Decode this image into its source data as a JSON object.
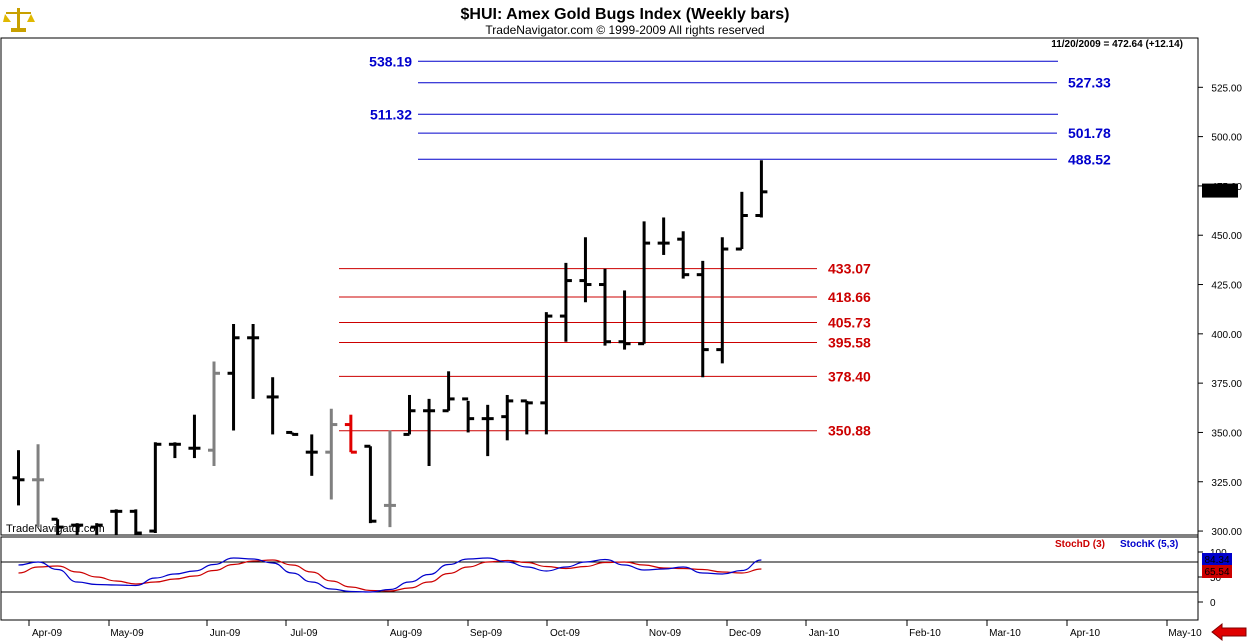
{
  "header": {
    "title": "$HUI:  Amex Gold Bugs Index  (Weekly bars)",
    "subtitle": "TradeNavigator.com © 1999-2009 All rights reserved",
    "last_info": "11/20/2009 = 472.64 (+12.14)",
    "watermark": "TradeNavigator.com"
  },
  "icons": {
    "logo": "gold-scales-icon",
    "scroll_left": "red-left-arrow-icon"
  },
  "colors": {
    "up_bars": "#000000",
    "down_bars": "#808080",
    "highlight_bar": "#e00000",
    "blue_levels": "#0000cc",
    "red_levels": "#cc0000",
    "stoch_d": "#cc0000",
    "stoch_k": "#0000cc"
  },
  "chart_data": {
    "type": "ohlc",
    "x_tick_labels": [
      "Apr-09",
      "May-09",
      "Jun-09",
      "Jul-09",
      "Aug-09",
      "Sep-09",
      "Oct-09",
      "Nov-09",
      "Dec-09",
      "Jan-10",
      "Feb-10",
      "Mar-10",
      "Apr-10",
      "May-10"
    ],
    "y_tick_labels": [
      "300.00",
      "325.00",
      "350.00",
      "375.00",
      "400.00",
      "425.00",
      "450.00",
      "475.00",
      "500.00",
      "525.00"
    ],
    "ylim": [
      298,
      550
    ],
    "last_price_label": "472.64",
    "bars": [
      {
        "o": 327,
        "h": 341,
        "l": 313,
        "c": 326,
        "color": "black"
      },
      {
        "o": 326,
        "h": 344,
        "l": 302,
        "c": 326,
        "color": "gray"
      },
      {
        "o": 306,
        "h": 306,
        "l": 298,
        "c": 302,
        "color": "black"
      },
      {
        "o": 303,
        "h": 304,
        "l": 298,
        "c": 303,
        "color": "black"
      },
      {
        "o": 302,
        "h": 304,
        "l": 298,
        "c": 303,
        "color": "black"
      },
      {
        "o": 310,
        "h": 311,
        "l": 298,
        "c": 310,
        "color": "black"
      },
      {
        "o": 310,
        "h": 311,
        "l": 298,
        "c": 299,
        "color": "black"
      },
      {
        "o": 300,
        "h": 345,
        "l": 299,
        "c": 344,
        "color": "black"
      },
      {
        "o": 344,
        "h": 345,
        "l": 337,
        "c": 344,
        "color": "black"
      },
      {
        "o": 342,
        "h": 359,
        "l": 337,
        "c": 342,
        "color": "black"
      },
      {
        "o": 341,
        "h": 386,
        "l": 333,
        "c": 380,
        "color": "gray"
      },
      {
        "o": 380,
        "h": 405,
        "l": 351,
        "c": 398,
        "color": "black"
      },
      {
        "o": 398,
        "h": 405,
        "l": 367,
        "c": 398,
        "color": "black"
      },
      {
        "o": 368,
        "h": 378,
        "l": 349,
        "c": 368,
        "color": "black"
      },
      {
        "o": 350,
        "h": 350,
        "l": 349,
        "c": 349,
        "color": "black"
      },
      {
        "o": 340,
        "h": 349,
        "l": 328,
        "c": 340,
        "color": "black"
      },
      {
        "o": 340,
        "h": 362,
        "l": 316,
        "c": 354,
        "color": "gray"
      },
      {
        "o": 354,
        "h": 359,
        "l": 340,
        "c": 340,
        "color": "red"
      },
      {
        "o": 343,
        "h": 343,
        "l": 304,
        "c": 305,
        "color": "black"
      },
      {
        "o": 313,
        "h": 351,
        "l": 302,
        "c": 313,
        "color": "gray"
      },
      {
        "o": 349,
        "h": 369,
        "l": 349,
        "c": 361,
        "color": "black"
      },
      {
        "o": 361,
        "h": 367,
        "l": 333,
        "c": 361,
        "color": "black"
      },
      {
        "o": 361,
        "h": 381,
        "l": 361,
        "c": 367,
        "color": "black"
      },
      {
        "o": 367,
        "h": 366,
        "l": 350,
        "c": 357,
        "color": "black"
      },
      {
        "o": 357,
        "h": 364,
        "l": 338,
        "c": 357,
        "color": "black"
      },
      {
        "o": 358,
        "h": 369,
        "l": 346,
        "c": 366,
        "color": "black"
      },
      {
        "o": 366,
        "h": 366,
        "l": 349,
        "c": 365,
        "color": "black"
      },
      {
        "o": 365,
        "h": 411,
        "l": 349,
        "c": 409,
        "color": "black"
      },
      {
        "o": 409,
        "h": 436,
        "l": 396,
        "c": 427,
        "color": "black"
      },
      {
        "o": 427,
        "h": 449,
        "l": 416,
        "c": 425,
        "color": "black"
      },
      {
        "o": 425,
        "h": 433,
        "l": 394,
        "c": 396,
        "color": "black"
      },
      {
        "o": 396,
        "h": 422,
        "l": 392,
        "c": 395,
        "color": "black"
      },
      {
        "o": 395,
        "h": 457,
        "l": 395,
        "c": 446,
        "color": "black"
      },
      {
        "o": 446,
        "h": 459,
        "l": 440,
        "c": 446,
        "color": "black"
      },
      {
        "o": 448,
        "h": 452,
        "l": 428,
        "c": 430,
        "color": "black"
      },
      {
        "o": 430,
        "h": 437,
        "l": 378,
        "c": 392,
        "color": "black"
      },
      {
        "o": 392,
        "h": 449,
        "l": 385,
        "c": 443,
        "color": "black"
      },
      {
        "o": 443,
        "h": 472,
        "l": 443,
        "c": 460,
        "color": "black"
      },
      {
        "o": 460,
        "h": 488,
        "l": 459,
        "c": 472,
        "color": "black"
      }
    ],
    "levels": [
      {
        "value": 538.19,
        "label": "538.19",
        "color": "blue",
        "label_side": "left"
      },
      {
        "value": 527.33,
        "label": "527.33",
        "color": "blue",
        "label_side": "right"
      },
      {
        "value": 511.32,
        "label": "511.32",
        "color": "blue",
        "label_side": "left"
      },
      {
        "value": 501.78,
        "label": "501.78",
        "color": "blue",
        "label_side": "right"
      },
      {
        "value": 488.52,
        "label": "488.52",
        "color": "blue",
        "label_side": "right"
      },
      {
        "value": 433.07,
        "label": "433.07",
        "color": "red",
        "label_side": "right"
      },
      {
        "value": 418.66,
        "label": "418.66",
        "color": "red",
        "label_side": "right"
      },
      {
        "value": 405.73,
        "label": "405.73",
        "color": "red",
        "label_side": "right"
      },
      {
        "value": 395.58,
        "label": "395.58",
        "color": "red",
        "label_side": "right"
      },
      {
        "value": 378.4,
        "label": "378.40",
        "color": "red",
        "label_side": "right"
      },
      {
        "value": 350.88,
        "label": "350.88",
        "color": "red",
        "label_side": "right"
      }
    ],
    "stochastic": {
      "ylim": [
        0,
        100
      ],
      "y_tick_labels": [
        "100",
        "50",
        "0"
      ],
      "legend": [
        {
          "name": "StochD (3)",
          "color": "red"
        },
        {
          "name": "StochK (5,3)",
          "color": "blue"
        }
      ],
      "last_d_label": "65.54",
      "last_k_label": "84.34",
      "k_values": [
        74,
        80,
        65,
        40,
        35,
        34,
        33,
        48,
        56,
        62,
        75,
        88,
        86,
        78,
        58,
        40,
        26,
        21,
        20,
        25,
        40,
        55,
        75,
        86,
        88,
        80,
        70,
        62,
        70,
        80,
        85,
        74,
        64,
        66,
        70,
        58,
        56,
        63,
        84
      ],
      "d_values": [
        58,
        70,
        72,
        60,
        50,
        42,
        36,
        40,
        46,
        52,
        63,
        75,
        82,
        84,
        74,
        60,
        42,
        30,
        23,
        22,
        28,
        40,
        57,
        70,
        80,
        83,
        79,
        71,
        67,
        71,
        79,
        80,
        74,
        68,
        67,
        65,
        60,
        58,
        66
      ]
    }
  }
}
